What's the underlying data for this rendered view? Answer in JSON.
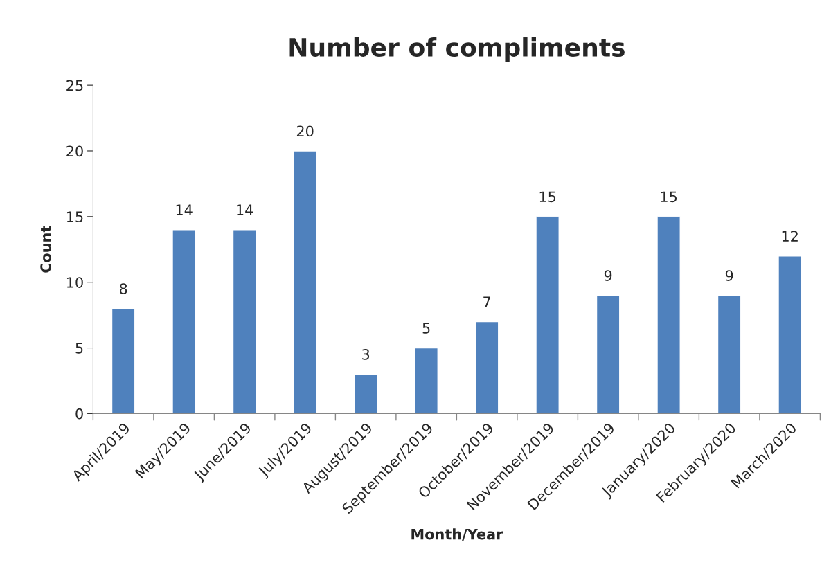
{
  "chart_data": {
    "type": "bar",
    "title": "Number of compliments",
    "xlabel": "Month/Year",
    "ylabel": "Count",
    "categories": [
      "April/2019",
      "May/2019",
      "June/2019",
      "July/2019",
      "August/2019",
      "September/2019",
      "October/2019",
      "November/2019",
      "December/2019",
      "January/2020",
      "February/2020",
      "March/2020"
    ],
    "values": [
      8,
      14,
      14,
      20,
      3,
      5,
      7,
      15,
      9,
      15,
      9,
      12
    ],
    "color": "#4f81bd",
    "ylim": [
      0,
      25
    ],
    "yticks": [
      0,
      5,
      10,
      15,
      20,
      25
    ],
    "data_labels": true,
    "grid": false,
    "legend": false
  }
}
